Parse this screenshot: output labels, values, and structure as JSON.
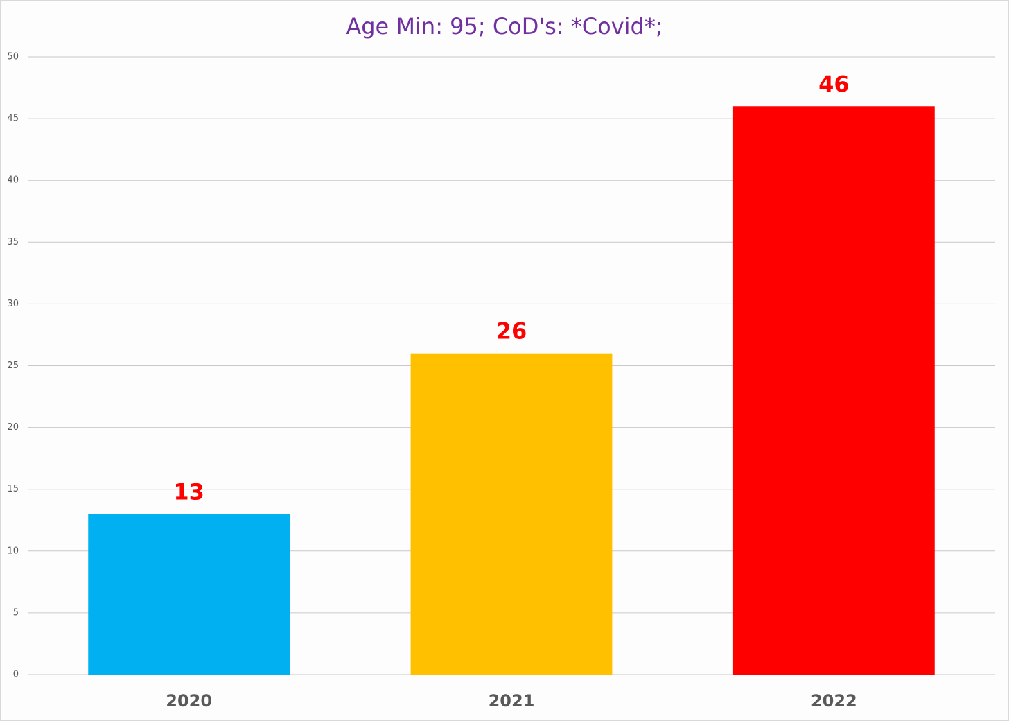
{
  "chart_data": {
    "type": "bar",
    "title": "Age Min: 95; CoD's: *Covid*;",
    "categories": [
      "2020",
      "2021",
      "2022"
    ],
    "values": [
      13,
      26,
      46
    ],
    "colors": [
      "#00b0f0",
      "#ffc000",
      "#ff0000"
    ],
    "value_label_color": "#ff0000",
    "ylim": [
      0,
      50
    ],
    "yticks": [
      0,
      5,
      10,
      15,
      20,
      25,
      30,
      35,
      40,
      45,
      50
    ],
    "grid": true
  }
}
